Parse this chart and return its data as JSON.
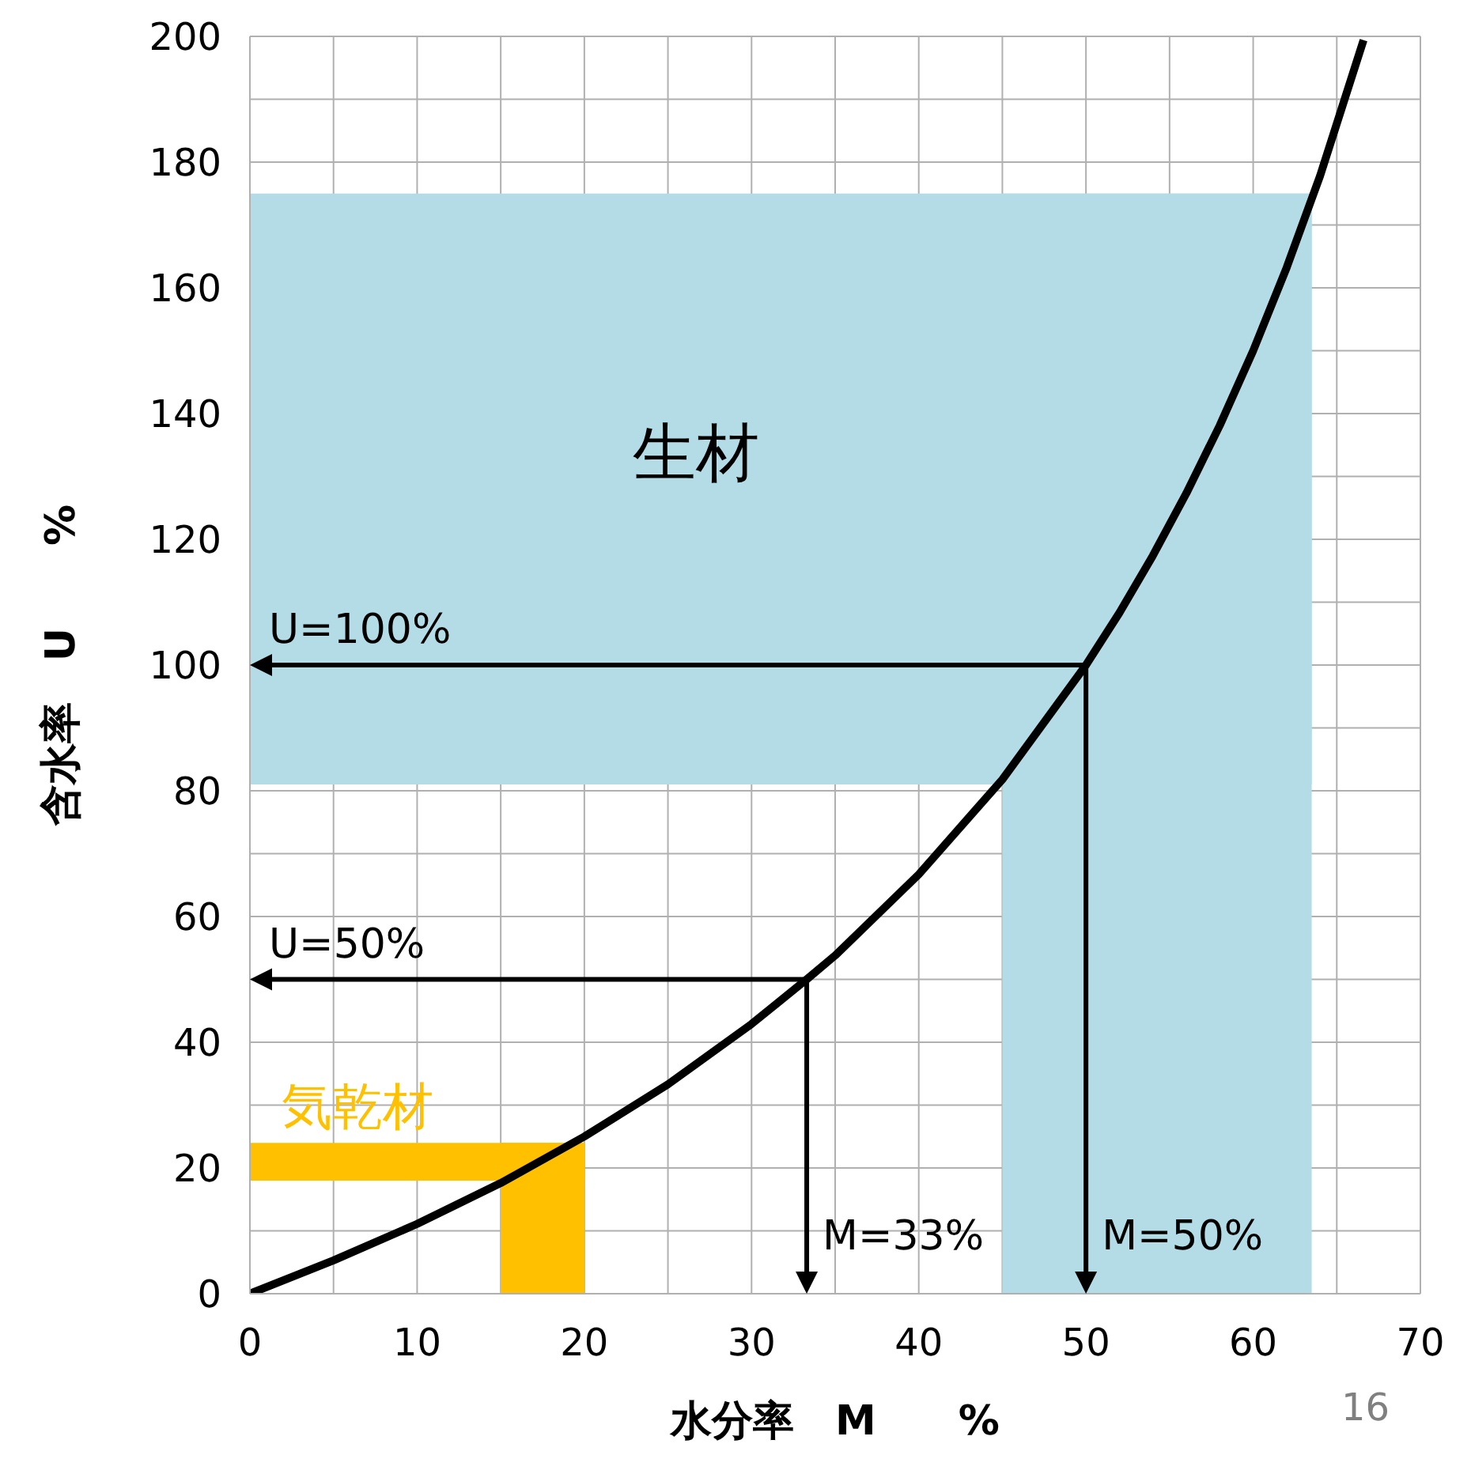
{
  "chart_data": {
    "type": "line",
    "xlabel": "水分率　M　　%",
    "ylabel": "含水率　U　　%",
    "x": [
      0,
      5,
      10,
      15,
      20,
      25,
      30,
      33.3,
      35,
      40,
      45,
      50,
      52,
      54,
      56,
      58,
      60,
      62,
      64,
      66.6
    ],
    "series": [
      {
        "color": "#000000",
        "values": [
          0,
          5.3,
          11.1,
          17.6,
          25,
          33.3,
          42.9,
          50,
          53.8,
          66.7,
          81.8,
          100,
          108.3,
          117.4,
          127.3,
          138.1,
          150,
          163.2,
          177.8,
          199.4
        ]
      }
    ],
    "xlim": [
      0,
      70
    ],
    "ylim": [
      0,
      200
    ],
    "xticks": [
      0,
      {
        "value": 5,
        "label": null
      },
      10,
      {
        "value": 15,
        "label": null
      },
      20,
      {
        "value": 25,
        "label": null
      },
      30,
      {
        "value": 35,
        "label": null
      },
      40,
      {
        "value": 45,
        "label": null
      },
      50,
      {
        "value": 55,
        "label": null
      },
      60,
      {
        "value": 65,
        "label": null
      },
      70
    ],
    "yticks": [
      0,
      {
        "value": 10,
        "label": null
      },
      20,
      {
        "value": 30,
        "label": null
      },
      40,
      {
        "value": 50,
        "label": null
      },
      60,
      {
        "value": 70,
        "label": null
      },
      80,
      {
        "value": 90,
        "label": null
      },
      100,
      {
        "value": 110,
        "label": null
      },
      120,
      {
        "value": 130,
        "label": null
      },
      140,
      {
        "value": 150,
        "label": null
      },
      160,
      {
        "value": 170,
        "label": null
      },
      180,
      {
        "value": 190,
        "label": null
      },
      200
    ],
    "grid": true,
    "marker": "none",
    "line_style": "solid",
    "legend": false,
    "bands": [
      {
        "axis": "y",
        "from": 81,
        "to": 175,
        "label": "生材",
        "color": "#b4dce6"
      },
      {
        "axis": "x",
        "from": 45,
        "to": 63.5,
        "color": "#b4dce6"
      },
      {
        "axis": "y",
        "from": 18,
        "to": 24,
        "label": "気乾材",
        "color": "#ffc000"
      },
      {
        "axis": "x",
        "from": 15,
        "to": 20,
        "color": "#ffc000"
      }
    ],
    "ref_lines": [
      {
        "axis": "y",
        "value": 100,
        "label": "U=100%",
        "color": "#000000"
      },
      {
        "axis": "x",
        "value": 50,
        "label": "M=50%",
        "color": "#000000"
      },
      {
        "axis": "y",
        "value": 50,
        "label": "U=50%",
        "color": "#000000"
      },
      {
        "axis": "x",
        "value": 33.3,
        "label": "M=33%",
        "color": "#000000"
      }
    ],
    "annotations": [
      "16"
    ]
  }
}
